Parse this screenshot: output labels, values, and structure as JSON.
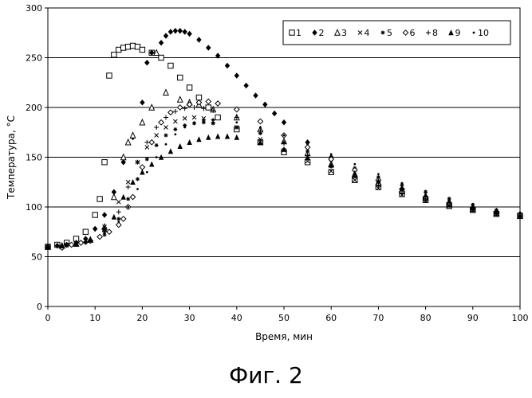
{
  "chart_data": {
    "type": "scatter",
    "title": "",
    "xlabel": "Время, мин",
    "ylabel": "Температура, °С",
    "xlim": [
      0,
      100
    ],
    "ylim": [
      0,
      300
    ],
    "xticks": [
      0,
      10,
      20,
      30,
      40,
      50,
      60,
      70,
      80,
      90,
      100
    ],
    "yticks": [
      0,
      50,
      100,
      150,
      200,
      250,
      300
    ],
    "grid": "horizontal",
    "legend_position": "top-right",
    "series": [
      {
        "name": "1",
        "marker": "square",
        "points": [
          [
            0,
            60
          ],
          [
            2,
            62
          ],
          [
            4,
            64
          ],
          [
            6,
            68
          ],
          [
            8,
            75
          ],
          [
            10,
            92
          ],
          [
            11,
            108
          ],
          [
            12,
            145
          ],
          [
            13,
            232
          ],
          [
            14,
            253
          ],
          [
            15,
            258
          ],
          [
            16,
            260
          ],
          [
            17,
            261
          ],
          [
            18,
            262
          ],
          [
            19,
            261
          ],
          [
            20,
            258
          ],
          [
            22,
            255
          ],
          [
            24,
            250
          ],
          [
            26,
            242
          ],
          [
            28,
            230
          ],
          [
            30,
            220
          ],
          [
            32,
            210
          ],
          [
            34,
            200
          ],
          [
            36,
            190
          ],
          [
            40,
            178
          ],
          [
            45,
            165
          ],
          [
            50,
            155
          ],
          [
            55,
            145
          ],
          [
            60,
            135
          ],
          [
            65,
            127
          ],
          [
            70,
            120
          ],
          [
            75,
            113
          ],
          [
            80,
            107
          ],
          [
            85,
            101
          ],
          [
            90,
            97
          ],
          [
            95,
            93
          ],
          [
            100,
            91
          ]
        ]
      },
      {
        "name": "2",
        "marker": "diamond",
        "points": [
          [
            0,
            60
          ],
          [
            2,
            61
          ],
          [
            4,
            62
          ],
          [
            6,
            64
          ],
          [
            8,
            68
          ],
          [
            10,
            78
          ],
          [
            12,
            92
          ],
          [
            14,
            115
          ],
          [
            16,
            145
          ],
          [
            18,
            170
          ],
          [
            20,
            205
          ],
          [
            21,
            245
          ],
          [
            22,
            255
          ],
          [
            24,
            265
          ],
          [
            25,
            272
          ],
          [
            26,
            276
          ],
          [
            27,
            277
          ],
          [
            28,
            277
          ],
          [
            29,
            276
          ],
          [
            30,
            274
          ],
          [
            32,
            268
          ],
          [
            34,
            260
          ],
          [
            36,
            252
          ],
          [
            38,
            242
          ],
          [
            40,
            232
          ],
          [
            42,
            222
          ],
          [
            44,
            212
          ],
          [
            46,
            203
          ],
          [
            48,
            194
          ],
          [
            50,
            185
          ],
          [
            55,
            165
          ],
          [
            60,
            150
          ],
          [
            65,
            137
          ],
          [
            70,
            126
          ],
          [
            75,
            117
          ],
          [
            80,
            110
          ],
          [
            85,
            104
          ],
          [
            90,
            99
          ],
          [
            95,
            95
          ],
          [
            100,
            93
          ]
        ]
      },
      {
        "name": "3",
        "marker": "triangle",
        "points": [
          [
            0,
            60
          ],
          [
            3,
            61
          ],
          [
            6,
            63
          ],
          [
            9,
            67
          ],
          [
            12,
            80
          ],
          [
            14,
            110
          ],
          [
            16,
            150
          ],
          [
            17,
            165
          ],
          [
            18,
            172
          ],
          [
            20,
            185
          ],
          [
            22,
            200
          ],
          [
            23,
            255
          ],
          [
            25,
            215
          ],
          [
            28,
            208
          ],
          [
            30,
            205
          ],
          [
            32,
            203
          ],
          [
            35,
            198
          ],
          [
            40,
            190
          ],
          [
            45,
            178
          ],
          [
            50,
            166
          ],
          [
            55,
            154
          ],
          [
            60,
            143
          ],
          [
            65,
            133
          ],
          [
            70,
            124
          ],
          [
            75,
            116
          ],
          [
            80,
            109
          ],
          [
            85,
            103
          ],
          [
            90,
            98
          ],
          [
            95,
            94
          ],
          [
            100,
            91
          ]
        ]
      },
      {
        "name": "4",
        "marker": "x",
        "points": [
          [
            0,
            60
          ],
          [
            4,
            62
          ],
          [
            8,
            66
          ],
          [
            12,
            80
          ],
          [
            15,
            105
          ],
          [
            17,
            125
          ],
          [
            19,
            145
          ],
          [
            21,
            160
          ],
          [
            23,
            172
          ],
          [
            25,
            180
          ],
          [
            27,
            186
          ],
          [
            29,
            189
          ],
          [
            31,
            190
          ],
          [
            33,
            189
          ],
          [
            35,
            186
          ],
          [
            40,
            180
          ],
          [
            45,
            168
          ],
          [
            50,
            157
          ],
          [
            55,
            146
          ],
          [
            60,
            136
          ],
          [
            65,
            127
          ],
          [
            70,
            119
          ],
          [
            75,
            112
          ],
          [
            80,
            106
          ],
          [
            85,
            101
          ],
          [
            90,
            97
          ],
          [
            95,
            93
          ],
          [
            100,
            90
          ]
        ]
      },
      {
        "name": "5",
        "marker": "star",
        "points": [
          [
            0,
            60
          ],
          [
            4,
            61
          ],
          [
            8,
            64
          ],
          [
            12,
            72
          ],
          [
            15,
            88
          ],
          [
            17,
            108
          ],
          [
            19,
            128
          ],
          [
            21,
            148
          ],
          [
            23,
            162
          ],
          [
            25,
            172
          ],
          [
            27,
            178
          ],
          [
            29,
            182
          ],
          [
            31,
            184
          ],
          [
            33,
            185
          ],
          [
            35,
            184
          ],
          [
            40,
            180
          ],
          [
            45,
            174
          ],
          [
            50,
            165
          ],
          [
            55,
            156
          ],
          [
            60,
            147
          ],
          [
            65,
            139
          ],
          [
            70,
            130
          ],
          [
            75,
            122
          ],
          [
            80,
            115
          ],
          [
            85,
            108
          ],
          [
            90,
            102
          ],
          [
            95,
            97
          ],
          [
            100,
            93
          ]
        ]
      },
      {
        "name": "6",
        "marker": "open-diamond",
        "points": [
          [
            0,
            60
          ],
          [
            3,
            59
          ],
          [
            5,
            62
          ],
          [
            7,
            64
          ],
          [
            9,
            66
          ],
          [
            11,
            70
          ],
          [
            13,
            75
          ],
          [
            15,
            82
          ],
          [
            16,
            88
          ],
          [
            17,
            100
          ],
          [
            18,
            110
          ],
          [
            20,
            140
          ],
          [
            22,
            165
          ],
          [
            24,
            185
          ],
          [
            26,
            195
          ],
          [
            28,
            200
          ],
          [
            30,
            203
          ],
          [
            32,
            205
          ],
          [
            34,
            206
          ],
          [
            36,
            204
          ],
          [
            40,
            198
          ],
          [
            45,
            186
          ],
          [
            50,
            172
          ],
          [
            55,
            160
          ],
          [
            60,
            148
          ],
          [
            65,
            137
          ],
          [
            70,
            127
          ],
          [
            75,
            118
          ],
          [
            80,
            110
          ],
          [
            85,
            104
          ],
          [
            90,
            99
          ],
          [
            95,
            95
          ],
          [
            100,
            92
          ]
        ]
      },
      {
        "name": "8",
        "marker": "plus",
        "points": [
          [
            0,
            60
          ],
          [
            4,
            62
          ],
          [
            8,
            65
          ],
          [
            12,
            75
          ],
          [
            15,
            95
          ],
          [
            17,
            120
          ],
          [
            19,
            145
          ],
          [
            21,
            165
          ],
          [
            23,
            180
          ],
          [
            25,
            190
          ],
          [
            27,
            196
          ],
          [
            29,
            199
          ],
          [
            31,
            200
          ],
          [
            33,
            199
          ],
          [
            35,
            197
          ],
          [
            40,
            190
          ],
          [
            45,
            177
          ],
          [
            50,
            164
          ],
          [
            55,
            152
          ],
          [
            60,
            141
          ],
          [
            65,
            131
          ],
          [
            70,
            122
          ],
          [
            75,
            114
          ],
          [
            80,
            107
          ],
          [
            85,
            101
          ],
          [
            90,
            97
          ],
          [
            95,
            93
          ],
          [
            100,
            90
          ]
        ]
      },
      {
        "name": "9",
        "marker": "filled-triangle",
        "points": [
          [
            0,
            60
          ],
          [
            3,
            61
          ],
          [
            6,
            63
          ],
          [
            9,
            67
          ],
          [
            12,
            78
          ],
          [
            14,
            90
          ],
          [
            16,
            110
          ],
          [
            18,
            125
          ],
          [
            20,
            135
          ],
          [
            22,
            143
          ],
          [
            24,
            150
          ],
          [
            26,
            156
          ],
          [
            28,
            161
          ],
          [
            30,
            165
          ],
          [
            32,
            168
          ],
          [
            34,
            170
          ],
          [
            36,
            171
          ],
          [
            38,
            171
          ],
          [
            40,
            170
          ],
          [
            45,
            165
          ],
          [
            50,
            158
          ],
          [
            55,
            150
          ],
          [
            60,
            142
          ],
          [
            65,
            134
          ],
          [
            70,
            126
          ],
          [
            75,
            119
          ],
          [
            80,
            112
          ],
          [
            85,
            106
          ],
          [
            90,
            100
          ],
          [
            95,
            96
          ],
          [
            100,
            92
          ]
        ]
      },
      {
        "name": "10",
        "marker": "dot",
        "points": [
          [
            0,
            60
          ],
          [
            4,
            62
          ],
          [
            8,
            66
          ],
          [
            12,
            74
          ],
          [
            15,
            85
          ],
          [
            17,
            100
          ],
          [
            19,
            118
          ],
          [
            21,
            135
          ],
          [
            23,
            150
          ],
          [
            25,
            163
          ],
          [
            27,
            173
          ],
          [
            29,
            180
          ],
          [
            31,
            185
          ],
          [
            33,
            187
          ],
          [
            35,
            188
          ],
          [
            40,
            185
          ],
          [
            45,
            180
          ],
          [
            50,
            172
          ],
          [
            55,
            163
          ],
          [
            60,
            153
          ],
          [
            65,
            143
          ],
          [
            70,
            133
          ],
          [
            75,
            124
          ],
          [
            80,
            116
          ],
          [
            85,
            109
          ],
          [
            90,
            103
          ],
          [
            95,
            97
          ],
          [
            100,
            93
          ]
        ]
      }
    ]
  },
  "caption": "Фиг. 2"
}
